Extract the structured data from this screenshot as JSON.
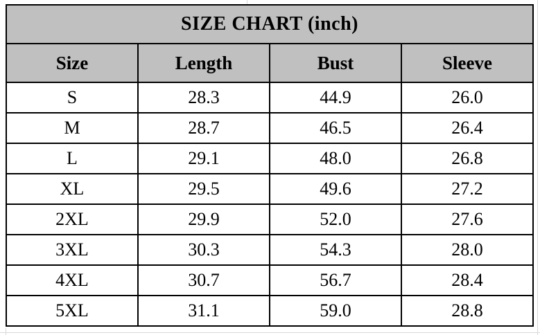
{
  "chart_data": {
    "type": "table",
    "title": "SIZE CHART (inch)",
    "units": "inch",
    "columns": [
      "Size",
      "Length",
      "Bust",
      "Sleeve"
    ],
    "rows": [
      [
        "S",
        "28.3",
        "44.9",
        "26.0"
      ],
      [
        "M",
        "28.7",
        "46.5",
        "26.4"
      ],
      [
        "L",
        "29.1",
        "48.0",
        "26.8"
      ],
      [
        "XL",
        "29.5",
        "49.6",
        "27.2"
      ],
      [
        "2XL",
        "29.9",
        "52.0",
        "27.6"
      ],
      [
        "3XL",
        "30.3",
        "54.3",
        "28.0"
      ],
      [
        "4XL",
        "30.7",
        "56.7",
        "28.4"
      ],
      [
        "5XL",
        "31.1",
        "59.0",
        "28.8"
      ]
    ]
  },
  "colors": {
    "header_bg": "#c0c0c0",
    "border": "#000000",
    "text": "#000000",
    "margin_gridline": "#d9d9d9",
    "background": "#ffffff"
  }
}
